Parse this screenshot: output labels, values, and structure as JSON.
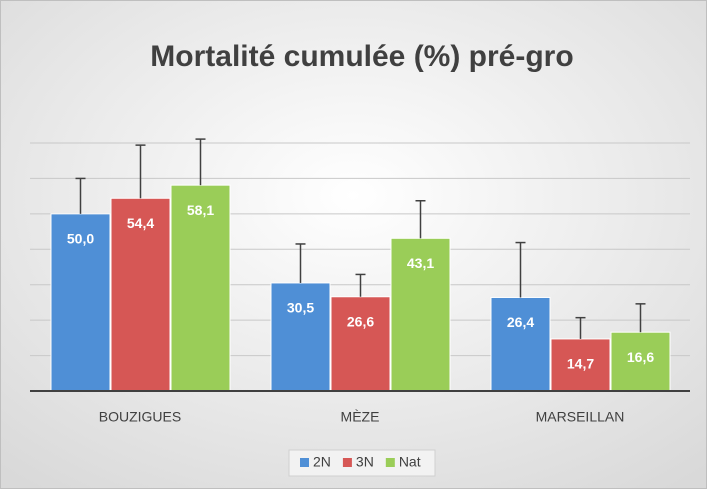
{
  "chart_data": {
    "type": "bar",
    "title": "Mortalité cumulée (%) pré-gro",
    "categories": [
      "BOUZIGUES",
      "MÈZE",
      "MARSEILLAN"
    ],
    "series": [
      {
        "name": "2N",
        "color": "#4f8fd6",
        "values": [
          50.0,
          30.5,
          26.4
        ],
        "value_labels": [
          "50,0",
          "30,5",
          "26,4"
        ],
        "errors": [
          10,
          11,
          15.5
        ]
      },
      {
        "name": "3N",
        "color": "#d65755",
        "values": [
          54.4,
          26.6,
          14.7
        ],
        "value_labels": [
          "54,4",
          "26,6",
          "14,7"
        ],
        "errors": [
          15,
          6.3,
          6
        ]
      },
      {
        "name": "Nat",
        "color": "#9acd58",
        "values": [
          58.1,
          43.1,
          16.6
        ],
        "value_labels": [
          "58,1",
          "43,1",
          "16,6"
        ],
        "errors": [
          13,
          10.6,
          8
        ]
      }
    ],
    "ylim": [
      0,
      70
    ],
    "yticks": [
      0,
      10,
      20,
      30,
      40,
      50,
      60,
      70
    ],
    "grid": true,
    "legend": "bottom"
  }
}
